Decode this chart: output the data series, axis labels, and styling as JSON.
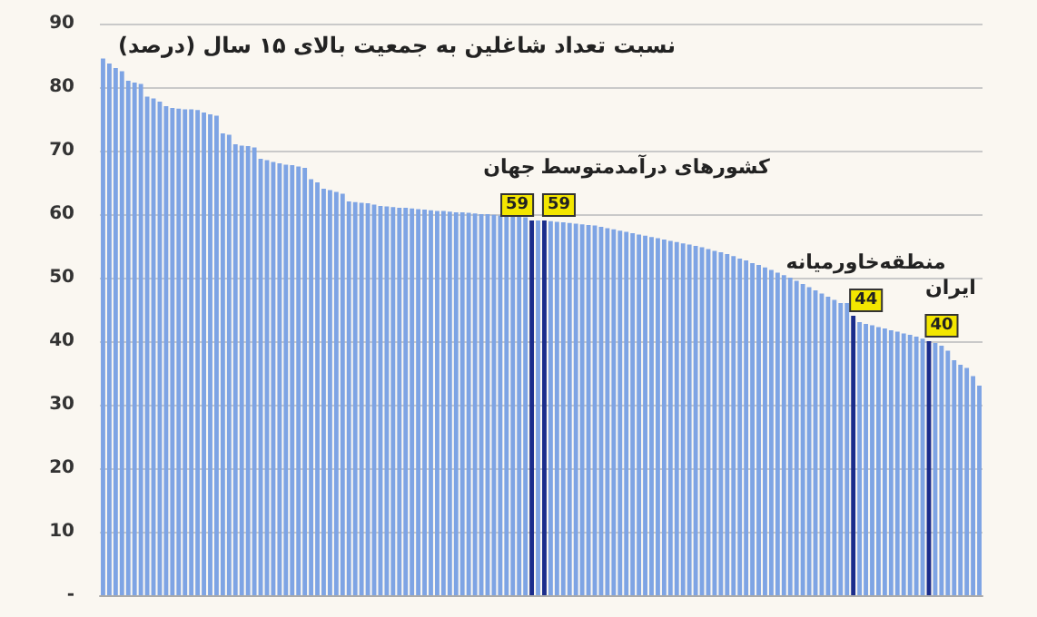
{
  "chart_data": {
    "type": "bar",
    "title": "نسبت تعداد شاغلین به جمعیت بالای ۱۵ سال (درصد)",
    "categories": [
      null,
      null,
      null,
      null,
      null,
      null,
      null,
      null,
      null,
      null,
      null,
      null,
      null,
      null,
      null,
      null,
      null,
      null,
      null,
      null,
      null,
      null,
      null,
      null,
      null,
      null,
      null,
      null,
      null,
      null,
      null,
      null,
      null,
      null,
      null,
      null,
      null,
      null,
      null,
      null,
      null,
      null,
      null,
      null,
      null,
      null,
      null,
      null,
      null,
      null,
      null,
      null,
      null,
      null,
      null,
      null,
      null,
      null,
      null,
      null,
      null,
      null,
      null,
      null,
      null,
      null,
      null,
      null,
      null,
      null,
      null,
      null,
      null,
      null,
      null,
      null,
      null,
      null,
      null,
      null,
      null,
      null,
      null,
      null,
      null,
      null,
      null,
      null,
      null,
      null,
      null,
      null,
      null,
      null,
      null,
      null,
      null,
      null,
      null,
      null,
      null,
      null,
      null,
      null,
      null,
      null,
      null,
      null,
      null,
      null,
      null,
      null,
      null,
      null,
      null,
      null,
      null,
      null,
      null,
      null,
      null,
      null,
      null,
      null,
      null,
      null,
      null,
      null,
      null,
      null,
      null,
      null,
      null,
      null,
      null,
      null,
      null,
      null,
      null,
      null
    ],
    "values": [
      84.5,
      83.7,
      83,
      82.5,
      81,
      80.7,
      80.5,
      78.5,
      78.2,
      77.7,
      77,
      76.7,
      76.6,
      76.5,
      76.5,
      76.4,
      76,
      75.7,
      75.5,
      72.7,
      72.5,
      71,
      70.8,
      70.7,
      70.5,
      68.7,
      68.5,
      68.2,
      68,
      67.8,
      67.7,
      67.5,
      67.3,
      65.5,
      65,
      64,
      63.8,
      63.5,
      63.2,
      62,
      61.9,
      61.8,
      61.7,
      61.5,
      61.3,
      61.2,
      61.1,
      61,
      61,
      60.9,
      60.8,
      60.7,
      60.6,
      60.5,
      60.5,
      60.4,
      60.3,
      60.3,
      60.2,
      60.1,
      60,
      60,
      59.9,
      59.8,
      59.8,
      59.7,
      59.6,
      59.5,
      59,
      59,
      59,
      58.9,
      58.8,
      58.7,
      58.6,
      58.5,
      58.4,
      58.3,
      58.2,
      58,
      57.8,
      57.6,
      57.4,
      57.2,
      57,
      56.8,
      56.6,
      56.4,
      56.2,
      56,
      55.8,
      55.6,
      55.4,
      55.2,
      55,
      54.8,
      54.5,
      54.2,
      54,
      53.7,
      53.4,
      53,
      52.7,
      52.3,
      52,
      51.6,
      51.2,
      50.8,
      50.4,
      50,
      49.5,
      49,
      48.5,
      48,
      47.5,
      47,
      46.5,
      46,
      46,
      44,
      43,
      42.7,
      42.5,
      42.2,
      42,
      41.7,
      41.5,
      41.2,
      41,
      40.7,
      40.4,
      40,
      39.7,
      39.3,
      38.5,
      37,
      36.3,
      35.8,
      34.5,
      33
    ],
    "colors": [
      "#7ea4e4",
      "#7ea4e4",
      "#7ea4e4",
      "#7ea4e4",
      "#7ea4e4",
      "#7ea4e4",
      "#7ea4e4",
      "#7ea4e4",
      "#7ea4e4",
      "#7ea4e4",
      "#7ea4e4",
      "#7ea4e4",
      "#7ea4e4",
      "#7ea4e4",
      "#7ea4e4",
      "#7ea4e4",
      "#7ea4e4",
      "#7ea4e4",
      "#7ea4e4",
      "#7ea4e4",
      "#7ea4e4",
      "#7ea4e4",
      "#7ea4e4",
      "#7ea4e4",
      "#7ea4e4",
      "#7ea4e4",
      "#7ea4e4",
      "#7ea4e4",
      "#7ea4e4",
      "#7ea4e4",
      "#7ea4e4",
      "#7ea4e4",
      "#7ea4e4",
      "#7ea4e4",
      "#7ea4e4",
      "#7ea4e4",
      "#7ea4e4",
      "#7ea4e4",
      "#7ea4e4",
      "#7ea4e4",
      "#7ea4e4",
      "#7ea4e4",
      "#7ea4e4",
      "#7ea4e4",
      "#7ea4e4",
      "#7ea4e4",
      "#7ea4e4",
      "#7ea4e4",
      "#7ea4e4",
      "#7ea4e4",
      "#7ea4e4",
      "#7ea4e4",
      "#7ea4e4",
      "#7ea4e4",
      "#7ea4e4",
      "#7ea4e4",
      "#7ea4e4",
      "#7ea4e4",
      "#7ea4e4",
      "#7ea4e4",
      "#7ea4e4",
      "#7ea4e4",
      "#7ea4e4",
      "#7ea4e4",
      "#7ea4e4",
      "#7ea4e4",
      "#7ea4e4",
      "#7ea4e4",
      "#1b2d8c",
      "#7ea4e4",
      "#1b2d8c",
      "#7ea4e4",
      "#7ea4e4",
      "#7ea4e4",
      "#7ea4e4",
      "#7ea4e4",
      "#7ea4e4",
      "#7ea4e4",
      "#7ea4e4",
      "#7ea4e4",
      "#7ea4e4",
      "#7ea4e4",
      "#7ea4e4",
      "#7ea4e4",
      "#7ea4e4",
      "#7ea4e4",
      "#7ea4e4",
      "#7ea4e4",
      "#7ea4e4",
      "#7ea4e4",
      "#7ea4e4",
      "#7ea4e4",
      "#7ea4e4",
      "#7ea4e4",
      "#7ea4e4",
      "#7ea4e4",
      "#7ea4e4",
      "#7ea4e4",
      "#7ea4e4",
      "#7ea4e4",
      "#7ea4e4",
      "#7ea4e4",
      "#7ea4e4",
      "#7ea4e4",
      "#7ea4e4",
      "#7ea4e4",
      "#7ea4e4",
      "#7ea4e4",
      "#7ea4e4",
      "#7ea4e4",
      "#7ea4e4",
      "#7ea4e4",
      "#7ea4e4",
      "#7ea4e4",
      "#7ea4e4",
      "#7ea4e4",
      "#7ea4e4",
      "#7ea4e4",
      "#7ea4e4",
      "#1b2d8c",
      "#7ea4e4",
      "#7ea4e4",
      "#7ea4e4",
      "#7ea4e4",
      "#7ea4e4",
      "#7ea4e4",
      "#7ea4e4",
      "#7ea4e4",
      "#7ea4e4",
      "#7ea4e4",
      "#7ea4e4",
      "#1b2d8c",
      "#7ea4e4",
      "#7ea4e4",
      "#7ea4e4",
      "#7ea4e4",
      "#7ea4e4",
      "#7ea4e4",
      "#7ea4e4",
      "#7ea4e4"
    ],
    "value_labels": [
      null,
      null,
      null,
      null,
      null,
      null,
      null,
      null,
      null,
      null,
      null,
      null,
      null,
      null,
      null,
      null,
      null,
      null,
      null,
      null,
      null,
      null,
      null,
      null,
      null,
      null,
      null,
      null,
      null,
      null,
      null,
      null,
      null,
      null,
      null,
      null,
      null,
      null,
      null,
      null,
      null,
      null,
      null,
      null,
      null,
      null,
      null,
      null,
      null,
      null,
      null,
      null,
      null,
      null,
      null,
      null,
      null,
      null,
      null,
      null,
      null,
      null,
      null,
      null,
      null,
      null,
      null,
      null,
      "59",
      null,
      "59",
      null,
      null,
      null,
      null,
      null,
      null,
      null,
      null,
      null,
      null,
      null,
      null,
      null,
      null,
      null,
      null,
      null,
      null,
      null,
      null,
      null,
      null,
      null,
      null,
      null,
      null,
      null,
      null,
      null,
      null,
      null,
      null,
      null,
      null,
      null,
      null,
      null,
      null,
      null,
      null,
      null,
      null,
      null,
      null,
      null,
      null,
      null,
      null,
      "44",
      null,
      null,
      null,
      null,
      null,
      null,
      null,
      null,
      null,
      null,
      null,
      "40",
      null,
      null,
      null,
      null,
      null,
      null,
      null,
      null
    ],
    "annotations": [
      "جهان",
      "کشورهای درآمدمتوسط",
      "منطقه‌خاورمیانه",
      "ایران"
    ],
    "ylim": [
      0,
      90
    ],
    "yticks": [
      {
        "value": 0,
        "label": "-"
      },
      10,
      20,
      30,
      40,
      50,
      60,
      70,
      80,
      90
    ],
    "grid": "y",
    "tick_labels": "y"
  }
}
